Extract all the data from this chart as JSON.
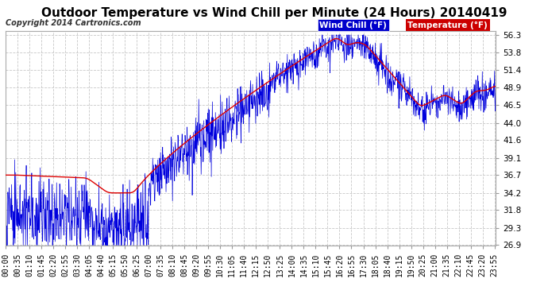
{
  "title": "Outdoor Temperature vs Wind Chill per Minute (24 Hours) 20140419",
  "copyright": "Copyright 2014 Cartronics.com",
  "legend_wind_chill": "Wind Chill (°F)",
  "legend_temperature": "Temperature (°F)",
  "y_ticks": [
    26.9,
    29.3,
    31.8,
    34.2,
    36.7,
    39.1,
    41.6,
    44.0,
    46.5,
    48.9,
    51.4,
    53.8,
    56.3
  ],
  "background_color": "#ffffff",
  "grid_color": "#c8c8c8",
  "wind_chill_color": "#0000dd",
  "temperature_color": "#dd0000",
  "title_fontsize": 11,
  "copyright_fontsize": 7,
  "axis_fontsize": 7.5,
  "y_min": 26.9,
  "y_max": 56.3
}
